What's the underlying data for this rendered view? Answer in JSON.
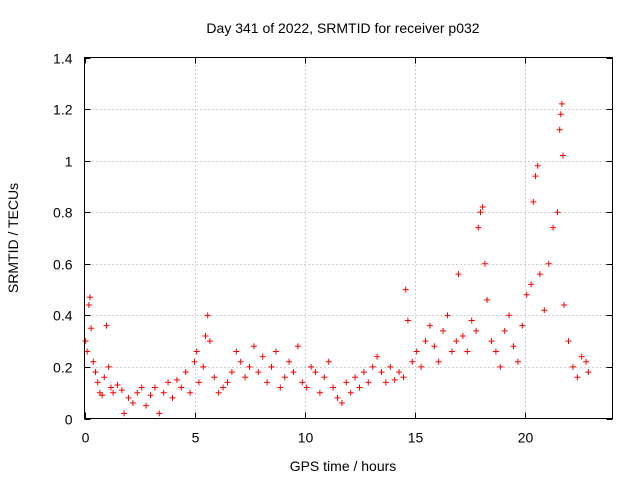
{
  "chart_data": {
    "type": "scatter",
    "title": "Day 341 of 2022, SRMTID for receiver p032",
    "xlabel": "GPS time / hours",
    "ylabel": "SRMTID / TECUs",
    "xlim": [
      0,
      24
    ],
    "ylim": [
      0,
      1.4
    ],
    "x_ticks": [
      0,
      5,
      10,
      15,
      20
    ],
    "x_tick_labels": [
      "0",
      "5",
      "10",
      "15",
      "20"
    ],
    "y_ticks": [
      0,
      0.2,
      0.4,
      0.6,
      0.8,
      1.0,
      1.2,
      1.4
    ],
    "y_tick_labels": [
      "0",
      "0.2",
      "0.4",
      "0.6",
      "0.8",
      "1",
      "1.2",
      "1.4"
    ],
    "grid": true,
    "marker": "plus",
    "color": "#ff0000",
    "series": [
      {
        "name": "SRMTID",
        "points": [
          [
            0.05,
            0.3
          ],
          [
            0.12,
            0.26
          ],
          [
            0.2,
            0.44
          ],
          [
            0.25,
            0.47
          ],
          [
            0.3,
            0.35
          ],
          [
            0.4,
            0.22
          ],
          [
            0.5,
            0.18
          ],
          [
            0.6,
            0.14
          ],
          [
            0.7,
            0.1
          ],
          [
            0.8,
            0.09
          ],
          [
            0.9,
            0.16
          ],
          [
            1.0,
            0.36
          ],
          [
            1.1,
            0.2
          ],
          [
            1.2,
            0.12
          ],
          [
            1.3,
            0.1
          ],
          [
            1.5,
            0.13
          ],
          [
            1.7,
            0.11
          ],
          [
            1.8,
            0.02
          ],
          [
            2.0,
            0.08
          ],
          [
            2.2,
            0.06
          ],
          [
            2.4,
            0.1
          ],
          [
            2.6,
            0.12
          ],
          [
            2.8,
            0.05
          ],
          [
            3.0,
            0.09
          ],
          [
            3.2,
            0.12
          ],
          [
            3.4,
            0.02
          ],
          [
            3.6,
            0.1
          ],
          [
            3.8,
            0.14
          ],
          [
            4.0,
            0.08
          ],
          [
            4.2,
            0.15
          ],
          [
            4.4,
            0.12
          ],
          [
            4.6,
            0.18
          ],
          [
            4.8,
            0.1
          ],
          [
            5.0,
            0.22
          ],
          [
            5.1,
            0.26
          ],
          [
            5.2,
            0.14
          ],
          [
            5.4,
            0.2
          ],
          [
            5.5,
            0.32
          ],
          [
            5.6,
            0.4
          ],
          [
            5.7,
            0.3
          ],
          [
            5.9,
            0.16
          ],
          [
            6.1,
            0.1
          ],
          [
            6.3,
            0.12
          ],
          [
            6.5,
            0.14
          ],
          [
            6.7,
            0.18
          ],
          [
            6.9,
            0.26
          ],
          [
            7.1,
            0.22
          ],
          [
            7.3,
            0.16
          ],
          [
            7.5,
            0.2
          ],
          [
            7.7,
            0.28
          ],
          [
            7.9,
            0.18
          ],
          [
            8.1,
            0.24
          ],
          [
            8.3,
            0.14
          ],
          [
            8.5,
            0.2
          ],
          [
            8.7,
            0.26
          ],
          [
            8.9,
            0.12
          ],
          [
            9.1,
            0.16
          ],
          [
            9.3,
            0.22
          ],
          [
            9.5,
            0.18
          ],
          [
            9.7,
            0.28
          ],
          [
            9.9,
            0.14
          ],
          [
            10.1,
            0.12
          ],
          [
            10.3,
            0.2
          ],
          [
            10.5,
            0.18
          ],
          [
            10.7,
            0.1
          ],
          [
            10.9,
            0.16
          ],
          [
            11.1,
            0.22
          ],
          [
            11.3,
            0.12
          ],
          [
            11.5,
            0.08
          ],
          [
            11.7,
            0.06
          ],
          [
            11.9,
            0.14
          ],
          [
            12.1,
            0.1
          ],
          [
            12.3,
            0.16
          ],
          [
            12.5,
            0.12
          ],
          [
            12.7,
            0.18
          ],
          [
            12.9,
            0.14
          ],
          [
            13.1,
            0.2
          ],
          [
            13.3,
            0.24
          ],
          [
            13.5,
            0.18
          ],
          [
            13.7,
            0.14
          ],
          [
            13.9,
            0.2
          ],
          [
            14.1,
            0.15
          ],
          [
            14.3,
            0.18
          ],
          [
            14.5,
            0.16
          ],
          [
            14.6,
            0.5
          ],
          [
            14.7,
            0.38
          ],
          [
            14.9,
            0.22
          ],
          [
            15.1,
            0.26
          ],
          [
            15.3,
            0.2
          ],
          [
            15.5,
            0.3
          ],
          [
            15.7,
            0.36
          ],
          [
            15.9,
            0.28
          ],
          [
            16.1,
            0.22
          ],
          [
            16.3,
            0.34
          ],
          [
            16.5,
            0.4
          ],
          [
            16.7,
            0.26
          ],
          [
            16.9,
            0.3
          ],
          [
            17.0,
            0.56
          ],
          [
            17.2,
            0.32
          ],
          [
            17.4,
            0.26
          ],
          [
            17.6,
            0.38
          ],
          [
            17.8,
            0.34
          ],
          [
            17.9,
            0.74
          ],
          [
            18.0,
            0.8
          ],
          [
            18.1,
            0.82
          ],
          [
            18.2,
            0.6
          ],
          [
            18.3,
            0.46
          ],
          [
            18.5,
            0.3
          ],
          [
            18.7,
            0.26
          ],
          [
            18.9,
            0.2
          ],
          [
            19.1,
            0.34
          ],
          [
            19.3,
            0.4
          ],
          [
            19.5,
            0.28
          ],
          [
            19.7,
            0.22
          ],
          [
            19.9,
            0.36
          ],
          [
            20.1,
            0.48
          ],
          [
            20.3,
            0.52
          ],
          [
            20.4,
            0.84
          ],
          [
            20.5,
            0.94
          ],
          [
            20.6,
            0.98
          ],
          [
            20.7,
            0.56
          ],
          [
            20.9,
            0.42
          ],
          [
            21.1,
            0.6
          ],
          [
            21.3,
            0.74
          ],
          [
            21.5,
            0.8
          ],
          [
            21.6,
            1.12
          ],
          [
            21.65,
            1.18
          ],
          [
            21.7,
            1.22
          ],
          [
            21.75,
            1.02
          ],
          [
            21.8,
            0.44
          ],
          [
            22.0,
            0.3
          ],
          [
            22.2,
            0.2
          ],
          [
            22.4,
            0.16
          ],
          [
            22.6,
            0.24
          ],
          [
            22.8,
            0.22
          ],
          [
            22.9,
            0.18
          ]
        ]
      }
    ]
  }
}
